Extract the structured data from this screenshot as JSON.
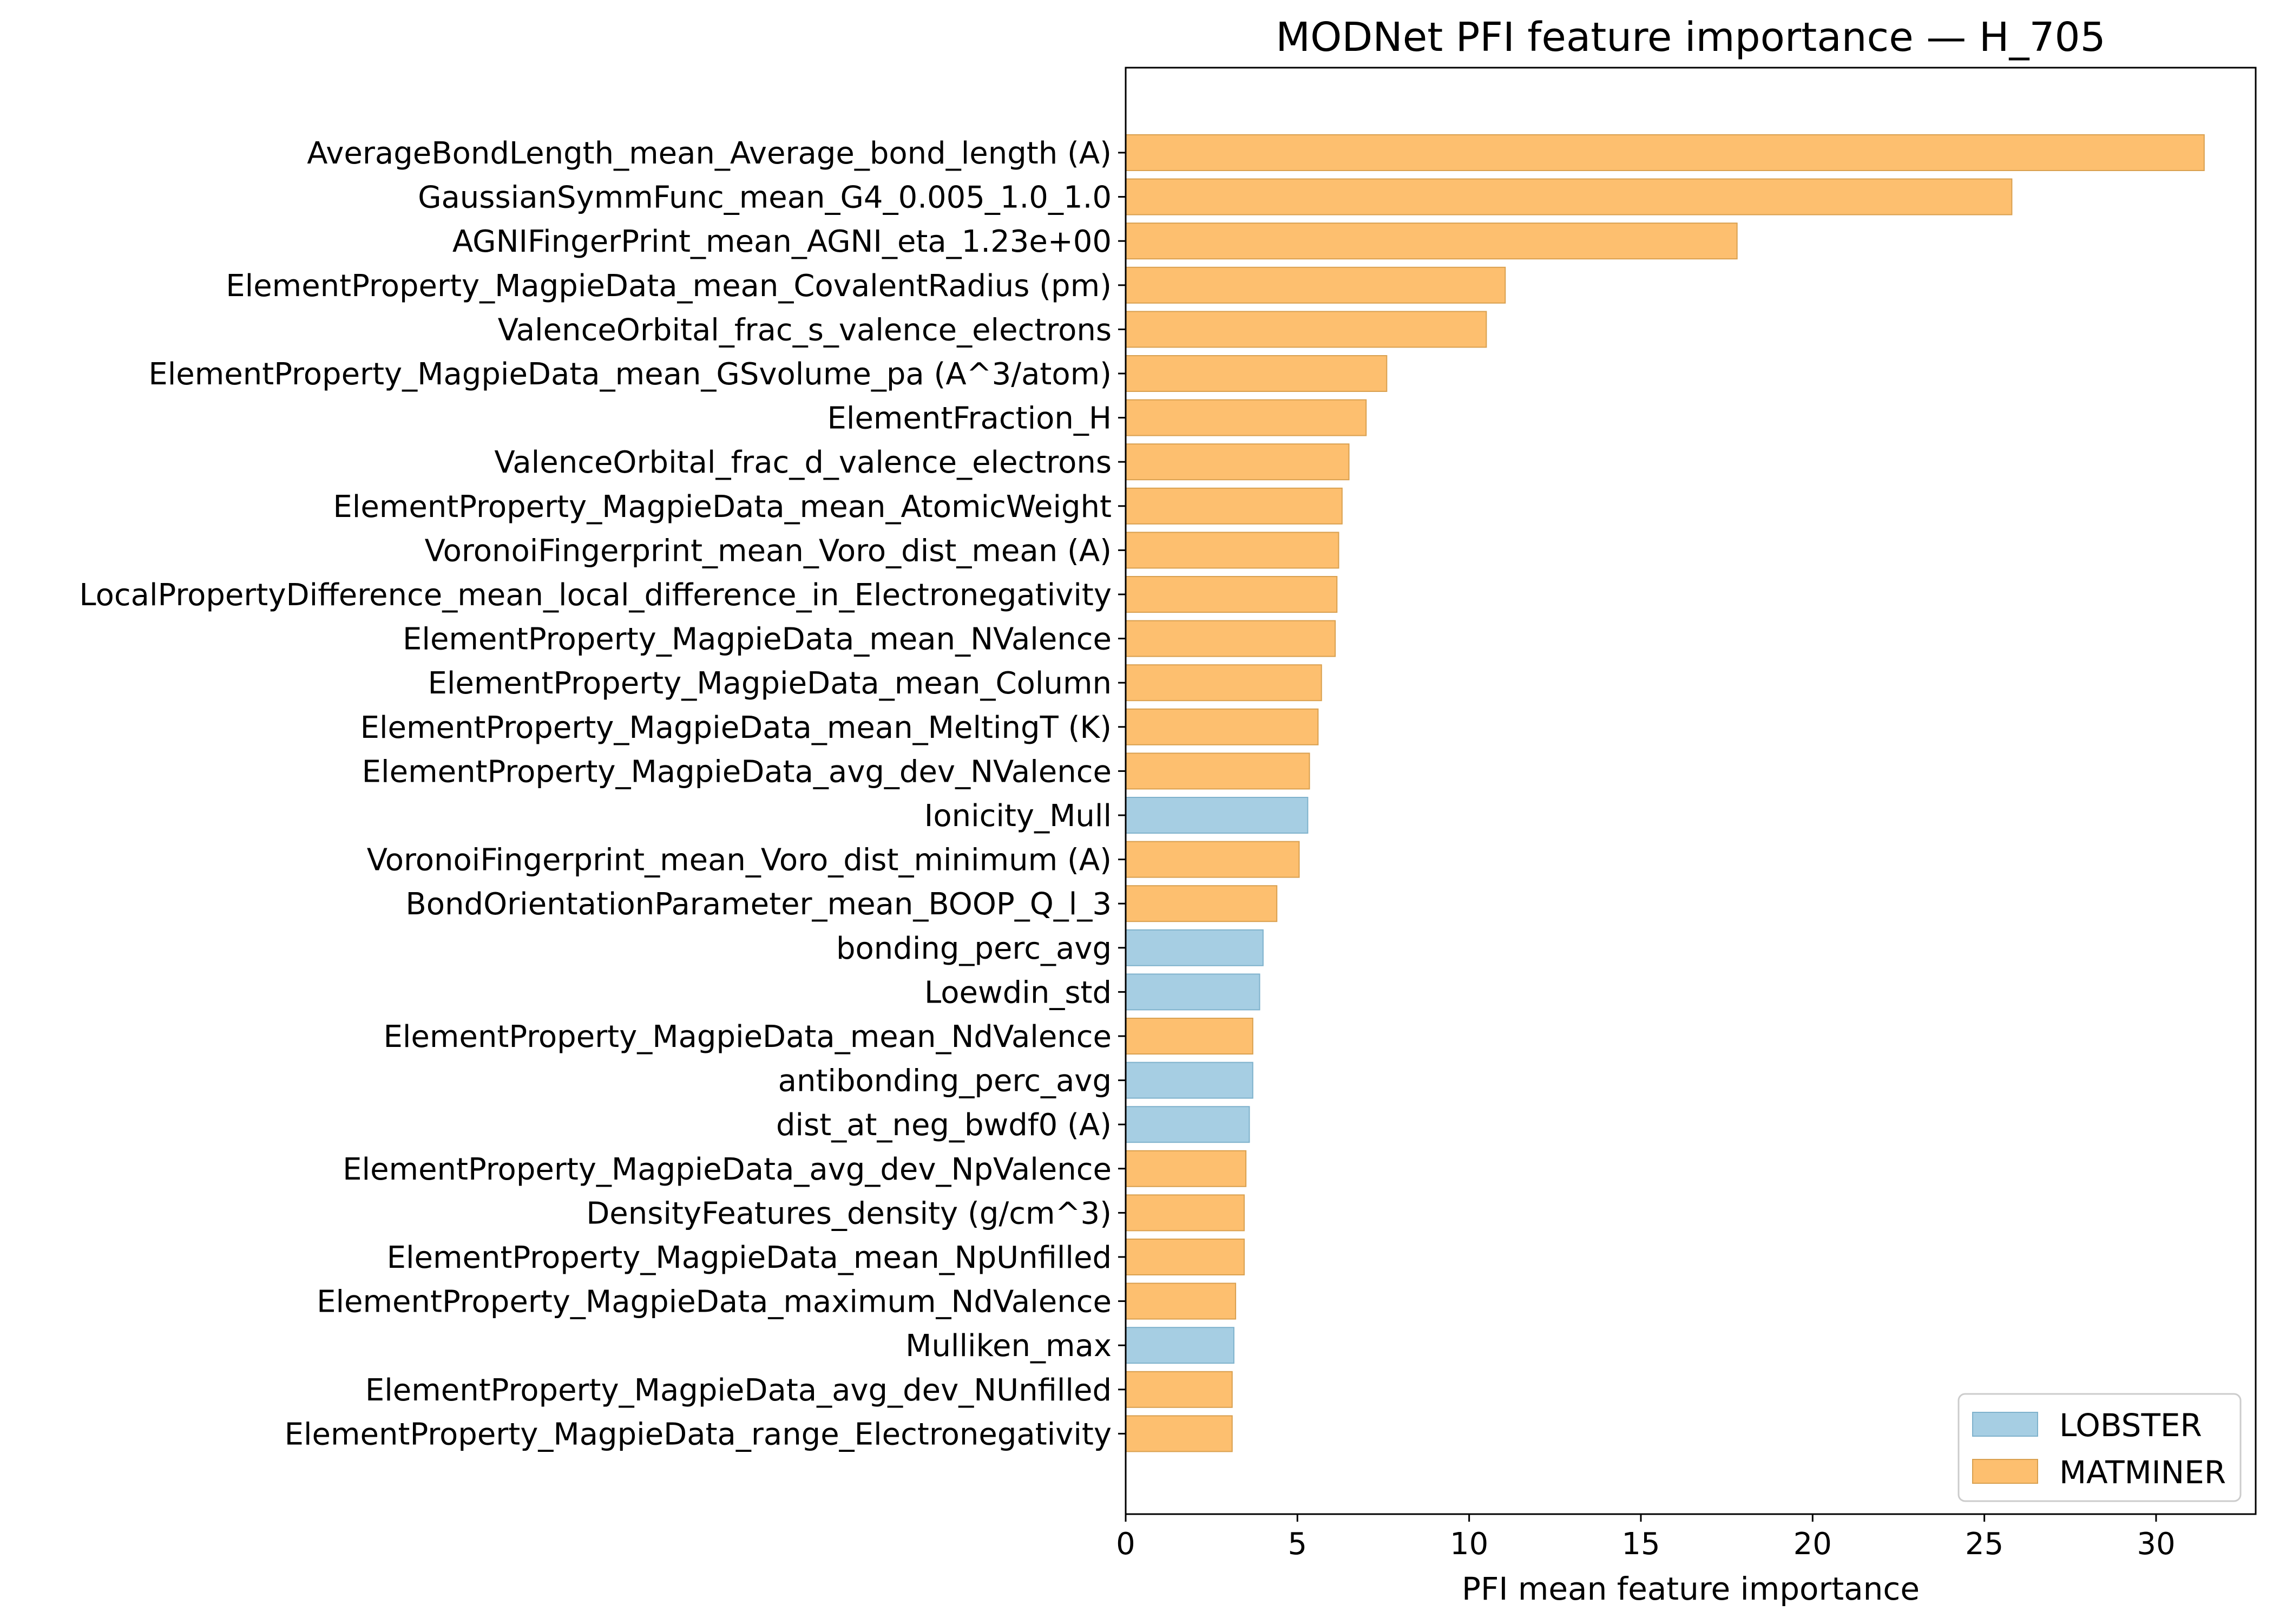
{
  "chart_data": {
    "type": "bar",
    "orientation": "horizontal",
    "title": "MODNet PFI feature importance — H_705",
    "xlabel": "PFI mean feature importance",
    "ylabel": "",
    "xlim": [
      0,
      32.9
    ],
    "xticks": [
      0,
      5,
      10,
      15,
      20,
      25,
      30
    ],
    "grid": false,
    "legend_position": "bottom-right",
    "colors": {
      "LOBSTER": "#a6cee3",
      "MATMINER": "#fdbf6f",
      "LOBSTER_edge": "#7fb2cc",
      "MATMINER_edge": "#d9a04f"
    },
    "legend": [
      {
        "label": "LOBSTER",
        "source": "LOBSTER"
      },
      {
        "label": "MATMINER",
        "source": "MATMINER"
      }
    ],
    "bars": [
      {
        "label": "AverageBondLength_mean_Average_bond_length (A)",
        "value": 31.4,
        "source": "MATMINER"
      },
      {
        "label": "GaussianSymmFunc_mean_G4_0.005_1.0_1.0",
        "value": 25.8,
        "source": "MATMINER"
      },
      {
        "label": "AGNIFingerPrint_mean_AGNI_eta_1.23e+00",
        "value": 17.8,
        "source": "MATMINER"
      },
      {
        "label": "ElementProperty_MagpieData_mean_CovalentRadius (pm)",
        "value": 11.05,
        "source": "MATMINER"
      },
      {
        "label": "ValenceOrbital_frac_s_valence_electrons",
        "value": 10.5,
        "source": "MATMINER"
      },
      {
        "label": "ElementProperty_MagpieData_mean_GSvolume_pa (A^3/atom)",
        "value": 7.6,
        "source": "MATMINER"
      },
      {
        "label": "ElementFraction_H",
        "value": 7.0,
        "source": "MATMINER"
      },
      {
        "label": "ValenceOrbital_frac_d_valence_electrons",
        "value": 6.5,
        "source": "MATMINER"
      },
      {
        "label": "ElementProperty_MagpieData_mean_AtomicWeight",
        "value": 6.3,
        "source": "MATMINER"
      },
      {
        "label": "VoronoiFingerprint_mean_Voro_dist_mean (A)",
        "value": 6.2,
        "source": "MATMINER"
      },
      {
        "label": "LocalPropertyDifference_mean_local_difference_in_Electronegativity",
        "value": 6.15,
        "source": "MATMINER"
      },
      {
        "label": "ElementProperty_MagpieData_mean_NValence",
        "value": 6.1,
        "source": "MATMINER"
      },
      {
        "label": "ElementProperty_MagpieData_mean_Column",
        "value": 5.7,
        "source": "MATMINER"
      },
      {
        "label": "ElementProperty_MagpieData_mean_MeltingT (K)",
        "value": 5.6,
        "source": "MATMINER"
      },
      {
        "label": "ElementProperty_MagpieData_avg_dev_NValence",
        "value": 5.35,
        "source": "MATMINER"
      },
      {
        "label": "Ionicity_Mull",
        "value": 5.3,
        "source": "LOBSTER"
      },
      {
        "label": "VoronoiFingerprint_mean_Voro_dist_minimum (A)",
        "value": 5.05,
        "source": "MATMINER"
      },
      {
        "label": "BondOrientationParameter_mean_BOOP_Q_l_3",
        "value": 4.4,
        "source": "MATMINER"
      },
      {
        "label": "bonding_perc_avg",
        "value": 4.0,
        "source": "LOBSTER"
      },
      {
        "label": "Loewdin_std",
        "value": 3.9,
        "source": "LOBSTER"
      },
      {
        "label": "ElementProperty_MagpieData_mean_NdValence",
        "value": 3.7,
        "source": "MATMINER"
      },
      {
        "label": "antibonding_perc_avg",
        "value": 3.7,
        "source": "LOBSTER"
      },
      {
        "label": "dist_at_neg_bwdf0 (A)",
        "value": 3.6,
        "source": "LOBSTER"
      },
      {
        "label": "ElementProperty_MagpieData_avg_dev_NpValence",
        "value": 3.5,
        "source": "MATMINER"
      },
      {
        "label": "DensityFeatures_density (g/cm^3)",
        "value": 3.45,
        "source": "MATMINER"
      },
      {
        "label": "ElementProperty_MagpieData_mean_NpUnfilled",
        "value": 3.45,
        "source": "MATMINER"
      },
      {
        "label": "ElementProperty_MagpieData_maximum_NdValence",
        "value": 3.2,
        "source": "MATMINER"
      },
      {
        "label": "Mulliken_max",
        "value": 3.15,
        "source": "LOBSTER"
      },
      {
        "label": "ElementProperty_MagpieData_avg_dev_NUnfilled",
        "value": 3.1,
        "source": "MATMINER"
      },
      {
        "label": "ElementProperty_MagpieData_range_Electronegativity",
        "value": 3.1,
        "source": "MATMINER"
      }
    ]
  }
}
